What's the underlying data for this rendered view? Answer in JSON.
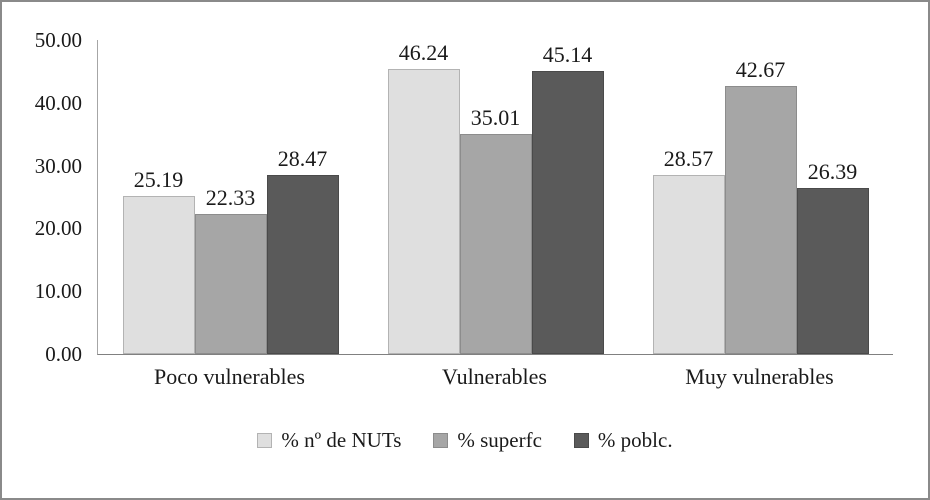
{
  "chart_data": {
    "type": "bar",
    "title": "",
    "categories": [
      "Poco vulnerables",
      "Vulnerables",
      "Muy vulnerables"
    ],
    "series": [
      {
        "name": "% nº de NUTs",
        "values": [
          25.19,
          46.24,
          28.57
        ],
        "color": "#dfdfdf",
        "border": "#b3b3b3"
      },
      {
        "name": "% superfc",
        "values": [
          22.33,
          35.01,
          42.67
        ],
        "color": "#a6a6a6",
        "border": "#8c8c8c"
      },
      {
        "name": "% poblc.",
        "values": [
          28.47,
          45.14,
          26.39
        ],
        "color": "#5a5a5a",
        "border": "#4a4a4a"
      }
    ],
    "ylim": [
      0,
      50
    ],
    "yticks": [
      0,
      10,
      20,
      30,
      40,
      50
    ],
    "ytick_labels": [
      "0.00",
      "10.00",
      "20.00",
      "30.00",
      "40.00",
      "50.00"
    ],
    "grid": false,
    "legend_position": "bottom",
    "value_labels": true,
    "xlabel": "",
    "ylabel": ""
  },
  "frame": {
    "border_color": "#8a8a8a",
    "background": "#ffffff"
  }
}
